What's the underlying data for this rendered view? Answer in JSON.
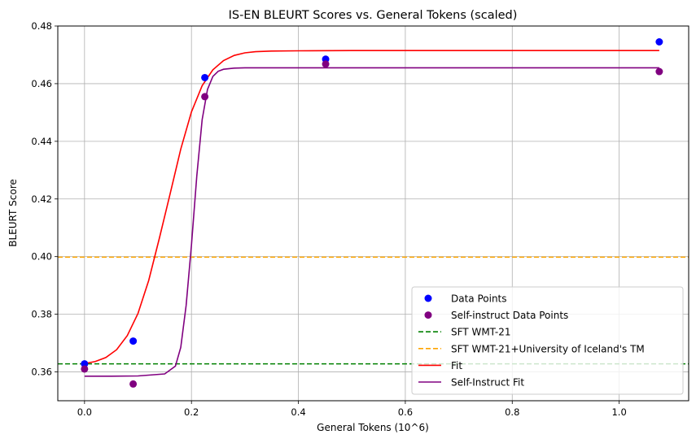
{
  "chart_data": {
    "type": "scatter",
    "title": "IS-EN BLEURT Scores vs. General Tokens (scaled)",
    "xlabel": "General Tokens (10^6)",
    "ylabel": "BLEURT Score",
    "xlim": [
      -0.05,
      1.13
    ],
    "ylim": [
      0.35,
      0.48
    ],
    "x_ticks": [
      0.0,
      0.2,
      0.4,
      0.6,
      0.8,
      1.0
    ],
    "x_tick_labels": [
      "0.0",
      "0.2",
      "0.4",
      "0.6",
      "0.8",
      "1.0"
    ],
    "y_ticks": [
      0.36,
      0.38,
      0.4,
      0.42,
      0.44,
      0.46,
      0.48
    ],
    "y_tick_labels": [
      "0.36",
      "0.38",
      "0.40",
      "0.42",
      "0.44",
      "0.46",
      "0.48"
    ],
    "grid": true,
    "legend_position": "lower-right",
    "series": [
      {
        "name": "Data Points",
        "kind": "scatter",
        "color": "#0000ff",
        "x": [
          0.0,
          0.091,
          0.225,
          0.451,
          1.075
        ],
        "y": [
          0.3628,
          0.3707,
          0.4621,
          0.4685,
          0.4745
        ]
      },
      {
        "name": "Self-instruct Data Points",
        "kind": "scatter",
        "color": "#800080",
        "x": [
          0.0,
          0.091,
          0.225,
          0.451,
          1.075
        ],
        "y": [
          0.361,
          0.3558,
          0.4555,
          0.4668,
          0.4642
        ]
      },
      {
        "name": "SFT WMT-21",
        "kind": "hline",
        "color": "#008000",
        "style": "dashed",
        "y": 0.3628
      },
      {
        "name": "SFT WMT-21+University of Iceland's TM",
        "kind": "hline",
        "color": "#ffa500",
        "style": "dashed",
        "y": 0.3998
      },
      {
        "name": "Fit",
        "kind": "line",
        "color": "#ff0000",
        "x": [
          0.0,
          0.02,
          0.04,
          0.06,
          0.08,
          0.1,
          0.12,
          0.14,
          0.16,
          0.18,
          0.2,
          0.22,
          0.24,
          0.26,
          0.28,
          0.3,
          0.32,
          0.35,
          0.4,
          0.5,
          0.7,
          0.9,
          1.075
        ],
        "y": [
          0.3629,
          0.3636,
          0.365,
          0.3677,
          0.3726,
          0.3803,
          0.3917,
          0.4064,
          0.4217,
          0.4373,
          0.4502,
          0.4593,
          0.4648,
          0.468,
          0.4698,
          0.4707,
          0.4711,
          0.4713,
          0.4714,
          0.4715,
          0.4715,
          0.4715,
          0.4715
        ]
      },
      {
        "name": "Self-Instruct Fit",
        "kind": "line",
        "color": "#800080",
        "x": [
          0.0,
          0.05,
          0.1,
          0.15,
          0.17,
          0.18,
          0.19,
          0.2,
          0.21,
          0.22,
          0.23,
          0.24,
          0.25,
          0.26,
          0.28,
          0.3,
          0.4,
          0.6,
          0.8,
          1.075
        ],
        "y": [
          0.3585,
          0.3585,
          0.3586,
          0.3593,
          0.362,
          0.3685,
          0.383,
          0.404,
          0.428,
          0.4475,
          0.458,
          0.4625,
          0.4643,
          0.465,
          0.4654,
          0.4655,
          0.4655,
          0.4655,
          0.4655,
          0.4655
        ]
      }
    ]
  }
}
